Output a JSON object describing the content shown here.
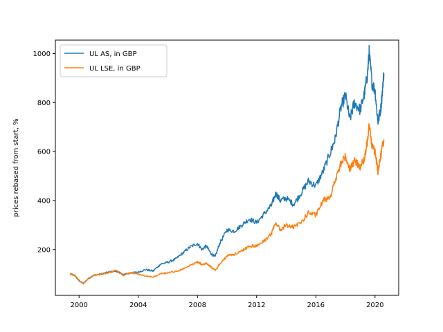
{
  "chart_data": {
    "type": "line",
    "title": "",
    "xlabel": "",
    "ylabel": "prices rebased from start, %",
    "xlim": [
      1998.4,
      2021.6
    ],
    "ylim": [
      13,
      1055
    ],
    "x_ticks": [
      2000,
      2004,
      2008,
      2012,
      2016,
      2020
    ],
    "x_tick_labels": [
      "2000",
      "2004",
      "2008",
      "2012",
      "2016",
      "2020"
    ],
    "y_ticks": [
      200,
      400,
      600,
      800,
      1000
    ],
    "y_tick_labels": [
      "200",
      "400",
      "600",
      "800",
      "1000"
    ],
    "grid": false,
    "legend_position": "top-left",
    "series": [
      {
        "name": "UL AS, in GBP",
        "color": "#1f77b4",
        "x": [
          1999.4,
          1999.7,
          2000.0,
          2000.3,
          2000.6,
          2001.0,
          2001.5,
          2002.0,
          2002.5,
          2003.0,
          2003.5,
          2004.0,
          2004.5,
          2005.0,
          2005.5,
          2006.0,
          2006.5,
          2007.0,
          2007.5,
          2008.0,
          2008.3,
          2008.6,
          2008.9,
          2009.2,
          2009.5,
          2010.0,
          2010.5,
          2011.0,
          2011.5,
          2012.0,
          2012.5,
          2013.0,
          2013.3,
          2013.6,
          2014.0,
          2014.5,
          2015.0,
          2015.5,
          2016.0,
          2016.5,
          2017.0,
          2017.3,
          2017.7,
          2018.0,
          2018.3,
          2018.6,
          2019.0,
          2019.3,
          2019.5,
          2019.6,
          2019.8,
          2020.0,
          2020.2,
          2020.4,
          2020.6
        ],
        "y": [
          100,
          95,
          72,
          62,
          80,
          95,
          100,
          108,
          112,
          98,
          105,
          108,
          118,
          112,
          140,
          148,
          160,
          185,
          210,
          225,
          200,
          215,
          185,
          170,
          225,
          280,
          275,
          300,
          325,
          310,
          345,
          380,
          430,
          400,
          410,
          385,
          430,
          480,
          460,
          520,
          600,
          650,
          780,
          830,
          730,
          800,
          770,
          840,
          920,
          1005,
          880,
          850,
          720,
          780,
          920
        ]
      },
      {
        "name": "UL LSE, in GBP",
        "color": "#ff7f0e",
        "x": [
          1999.4,
          1999.7,
          2000.0,
          2000.3,
          2000.6,
          2001.0,
          2001.5,
          2002.0,
          2002.5,
          2003.0,
          2003.5,
          2004.0,
          2004.5,
          2005.0,
          2005.5,
          2006.0,
          2006.5,
          2007.0,
          2007.5,
          2008.0,
          2008.3,
          2008.6,
          2008.9,
          2009.2,
          2009.5,
          2010.0,
          2010.5,
          2011.0,
          2011.5,
          2012.0,
          2012.5,
          2013.0,
          2013.3,
          2013.6,
          2014.0,
          2014.5,
          2015.0,
          2015.5,
          2016.0,
          2016.5,
          2017.0,
          2017.3,
          2017.7,
          2018.0,
          2018.3,
          2018.6,
          2019.0,
          2019.3,
          2019.5,
          2019.6,
          2019.8,
          2020.0,
          2020.2,
          2020.4,
          2020.6
        ],
        "y": [
          100,
          95,
          75,
          60,
          82,
          95,
          100,
          105,
          115,
          95,
          105,
          100,
          92,
          88,
          100,
          105,
          110,
          120,
          135,
          150,
          140,
          145,
          130,
          115,
          140,
          175,
          180,
          195,
          215,
          215,
          235,
          265,
          310,
          280,
          300,
          290,
          310,
          350,
          340,
          400,
          420,
          480,
          550,
          580,
          530,
          560,
          540,
          570,
          650,
          720,
          620,
          600,
          520,
          590,
          650
        ]
      }
    ]
  }
}
